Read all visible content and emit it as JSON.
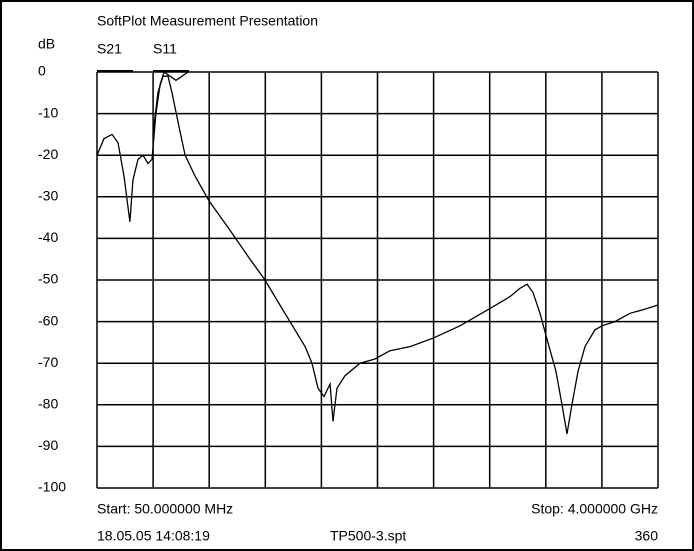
{
  "chart_data": {
    "type": "line",
    "title": "SoftPlot Measurement Presentation",
    "ylabel": "dB",
    "ylim": [
      -100,
      0
    ],
    "yticks": [
      0,
      -10,
      -20,
      -30,
      -40,
      -50,
      -60,
      -70,
      -80,
      -90,
      -100
    ],
    "xlim": [
      50,
      4000
    ],
    "x_divisions": 10,
    "grid": true,
    "start_label": "Start: 50.000000 MHz",
    "stop_label": "Stop: 4.000000 GHz",
    "timestamp": "18.05.05 14:08:19",
    "filename": "TP500-3.spt",
    "points": 360,
    "series": [
      {
        "name": "S21",
        "color": "#000000",
        "x": [
          444,
          479,
          515,
          550,
          578,
          620,
          670,
          740,
          839,
          986,
          1127,
          1233,
          1338,
          1444,
          1515,
          1564,
          1606,
          1648,
          1691,
          1712,
          1740,
          1796,
          1902,
          2007,
          2113,
          2254,
          2416,
          2606,
          2810,
          2958,
          3028,
          3078,
          3120,
          3169,
          3225,
          3282,
          3324,
          3359,
          3394,
          3437,
          3486,
          3556,
          3606,
          3697,
          3803,
          3909,
          4000
        ],
        "values": [
          -15,
          -5,
          -1,
          -1,
          -5,
          -12,
          -20,
          -25,
          -31,
          -38,
          -45,
          -50,
          -56,
          -62,
          -66,
          -70,
          -76,
          -78,
          -75,
          -84,
          -76,
          -73,
          -70,
          -69,
          -67,
          -66,
          -64,
          -61,
          -57,
          -54,
          -52,
          -51,
          -53,
          -58,
          -65,
          -72,
          -80,
          -87,
          -80,
          -72,
          -66,
          -62,
          -61,
          -60,
          -58,
          -57,
          -56
        ]
      },
      {
        "name": "S11",
        "color": "#000000",
        "x": [
          50,
          99,
          156,
          198,
          240,
          282,
          303,
          339,
          374,
          409,
          437,
          465,
          494,
          522,
          564,
          606,
          649,
          691
        ],
        "values": [
          -20,
          -16,
          -15,
          -17,
          -25,
          -36,
          -26,
          -21,
          -20,
          -22,
          -21,
          -10,
          -3,
          0,
          -1,
          -2,
          -1,
          0
        ]
      }
    ]
  }
}
